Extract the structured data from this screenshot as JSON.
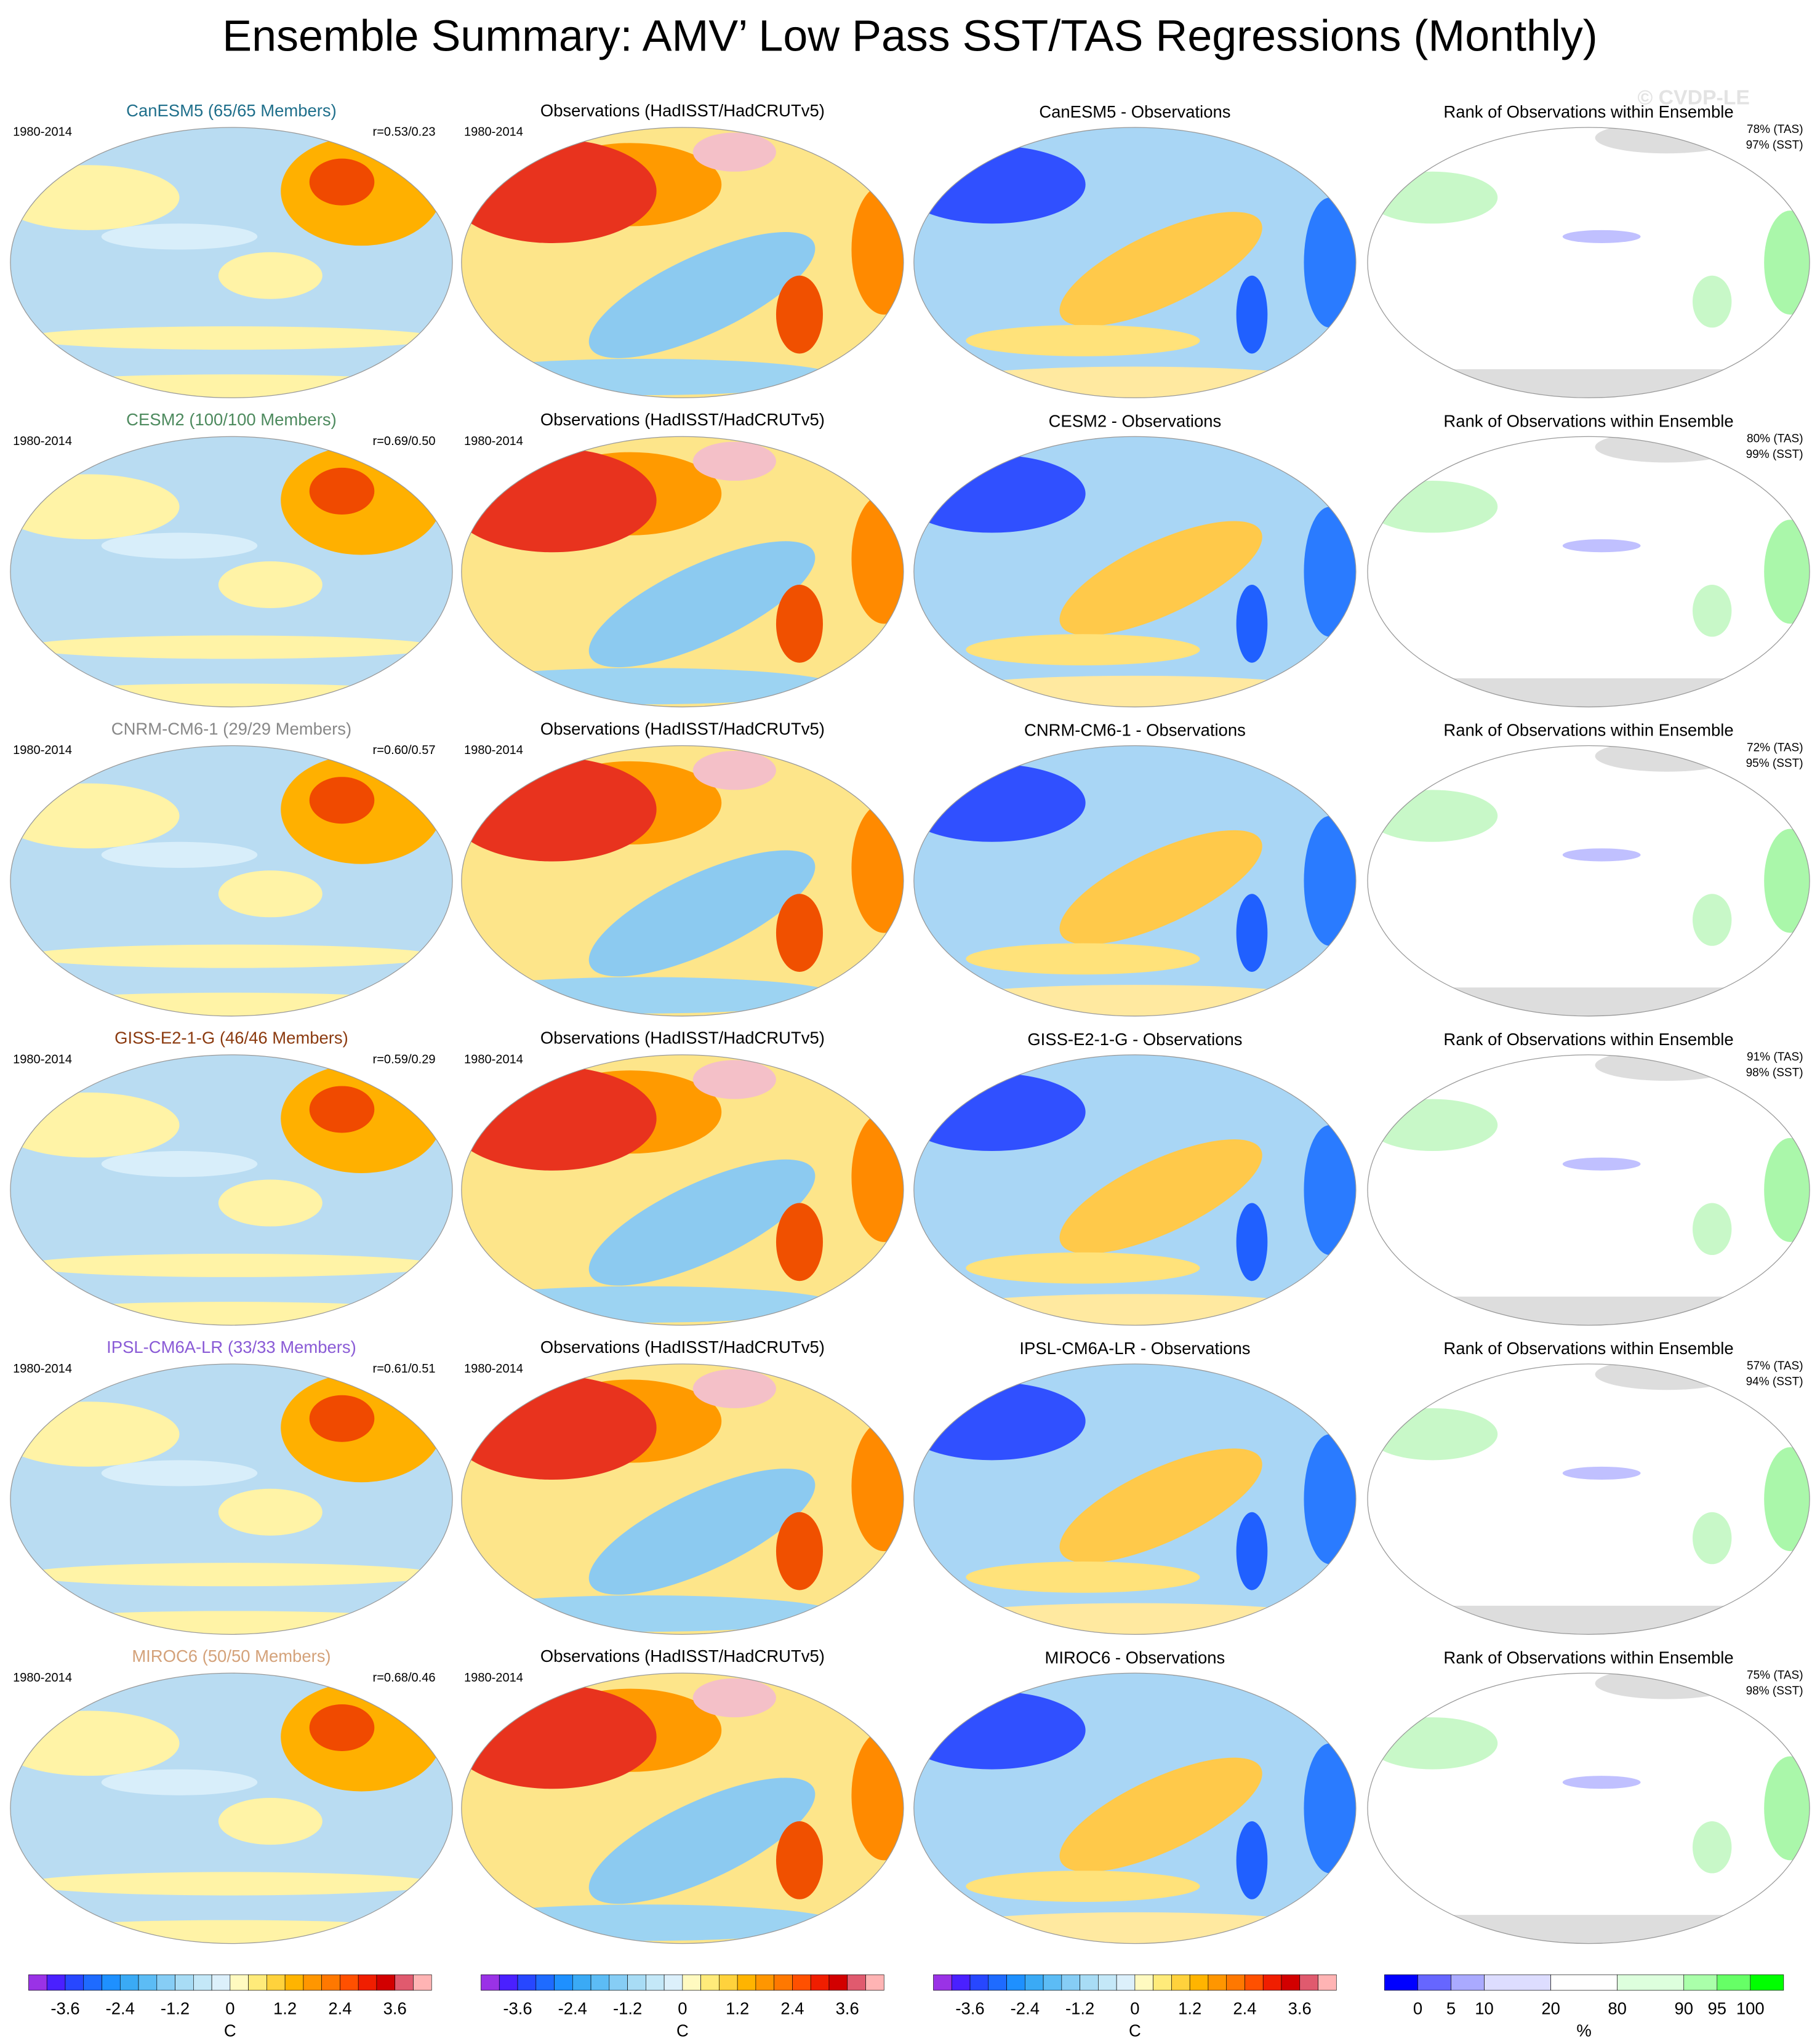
{
  "title": "Ensemble Summary: AMV’ Low Pass SST/TAS Regressions (Monthly)",
  "watermark": "© CVDP-LE",
  "rows": [
    {
      "model": "CanESM5 (65/65 Members)",
      "title_color": "#1f6f8b",
      "period": "1980-2014",
      "r": "r=0.53/0.23",
      "obs_title": "Observations (HadISST/HadCRUTv5)",
      "obs_period": "1980-2014",
      "diff_title": "CanESM5 - Observations",
      "rank_title": "Rank of Observations within Ensemble",
      "rank_tas": "78% (TAS)",
      "rank_sst": "97% (SST)"
    },
    {
      "model": "CESM2 (100/100 Members)",
      "title_color": "#4d8a5e",
      "period": "1980-2014",
      "r": "r=0.69/0.50",
      "obs_title": "Observations (HadISST/HadCRUTv5)",
      "obs_period": "1980-2014",
      "diff_title": "CESM2 - Observations",
      "rank_title": "Rank of Observations within Ensemble",
      "rank_tas": "80% (TAS)",
      "rank_sst": "99% (SST)"
    },
    {
      "model": "CNRM-CM6-1 (29/29 Members)",
      "title_color": "#888888",
      "period": "1980-2014",
      "r": "r=0.60/0.57",
      "obs_title": "Observations (HadISST/HadCRUTv5)",
      "obs_period": "1980-2014",
      "diff_title": "CNRM-CM6-1 - Observations",
      "rank_title": "Rank of Observations within Ensemble",
      "rank_tas": "72% (TAS)",
      "rank_sst": "95% (SST)"
    },
    {
      "model": "GISS-E2-1-G (46/46 Members)",
      "title_color": "#8b3a0f",
      "period": "1980-2014",
      "r": "r=0.59/0.29",
      "obs_title": "Observations (HadISST/HadCRUTv5)",
      "obs_period": "1980-2014",
      "diff_title": "GISS-E2-1-G - Observations",
      "rank_title": "Rank of Observations within Ensemble",
      "rank_tas": "91% (TAS)",
      "rank_sst": "98% (SST)"
    },
    {
      "model": "IPSL-CM6A-LR (33/33 Members)",
      "title_color": "#8a5bd6",
      "period": "1980-2014",
      "r": "r=0.61/0.51",
      "obs_title": "Observations (HadISST/HadCRUTv5)",
      "obs_period": "1980-2014",
      "diff_title": "IPSL-CM6A-LR - Observations",
      "rank_title": "Rank of Observations within Ensemble",
      "rank_tas": "57% (TAS)",
      "rank_sst": "94% (SST)"
    },
    {
      "model": "MIROC6 (50/50 Members)",
      "title_color": "#d4a27a",
      "period": "1980-2014",
      "r": "r=0.68/0.46",
      "obs_title": "Observations (HadISST/HadCRUTv5)",
      "obs_period": "1980-2014",
      "diff_title": "MIROC6 - Observations",
      "rank_title": "Rank of Observations within Ensemble",
      "rank_tas": "75% (TAS)",
      "rank_sst": "98% (SST)"
    }
  ],
  "colorbars": [
    {
      "kind": "continuous",
      "lim": [
        -4.4,
        4.4
      ],
      "ticks": [
        -3.6,
        -2.4,
        -1.2,
        0,
        1.2,
        2.4,
        3.6
      ],
      "unit": "C",
      "colors": [
        "#9a32e6",
        "#4a20ff",
        "#2747ff",
        "#1e6bff",
        "#1e90ff",
        "#3aaaf5",
        "#5cbcf5",
        "#86cdf5",
        "#a8dcf5",
        "#c4e8f8",
        "#dcf0fb",
        "#fffac0",
        "#ffeb7a",
        "#ffd23c",
        "#ffb400",
        "#ff9600",
        "#ff7800",
        "#ff5000",
        "#f01e00",
        "#d20000",
        "#e05a6e",
        "#ffb4b4"
      ]
    },
    {
      "kind": "continuous",
      "lim": [
        -4.4,
        4.4
      ],
      "ticks": [
        -3.6,
        -2.4,
        -1.2,
        0,
        1.2,
        2.4,
        3.6
      ],
      "unit": "C",
      "colors": [
        "#9a32e6",
        "#4a20ff",
        "#2747ff",
        "#1e6bff",
        "#1e90ff",
        "#3aaaf5",
        "#5cbcf5",
        "#86cdf5",
        "#a8dcf5",
        "#c4e8f8",
        "#dcf0fb",
        "#fffac0",
        "#ffeb7a",
        "#ffd23c",
        "#ffb400",
        "#ff9600",
        "#ff7800",
        "#ff5000",
        "#f01e00",
        "#d20000",
        "#e05a6e",
        "#ffb4b4"
      ]
    },
    {
      "kind": "continuous",
      "lim": [
        -4.4,
        4.4
      ],
      "ticks": [
        -3.6,
        -2.4,
        -1.2,
        0,
        1.2,
        2.4,
        3.6
      ],
      "unit": "C",
      "colors": [
        "#9a32e6",
        "#4a20ff",
        "#2747ff",
        "#1e6bff",
        "#1e90ff",
        "#3aaaf5",
        "#5cbcf5",
        "#86cdf5",
        "#a8dcf5",
        "#c4e8f8",
        "#dcf0fb",
        "#fffac0",
        "#ffeb7a",
        "#ffd23c",
        "#ffb400",
        "#ff9600",
        "#ff7800",
        "#ff5000",
        "#f01e00",
        "#d20000",
        "#e05a6e",
        "#ffb4b4"
      ]
    },
    {
      "kind": "categorical",
      "ticks": [
        0,
        5,
        10,
        20,
        80,
        90,
        95,
        100
      ],
      "unit": "%",
      "colors": [
        "#0000ff",
        "#6666ff",
        "#aaaaff",
        "#ddddff",
        "#ffffff",
        "#ddffdd",
        "#aaffaa",
        "#66ff66",
        "#00ff00"
      ]
    }
  ]
}
